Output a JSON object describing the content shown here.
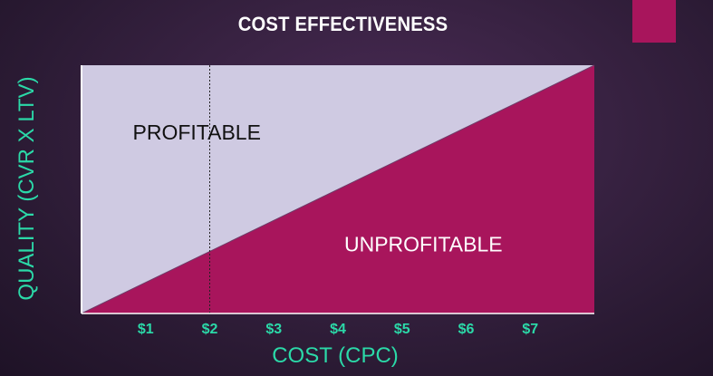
{
  "title": "COST EFFECTIVENESS",
  "colors": {
    "profitable_fill": "#cfcae2",
    "unprofitable_fill": "#a8155c",
    "axis_text": "#2bd9a8",
    "accent": "#a8155c"
  },
  "chart_data": {
    "type": "area",
    "xlabel": "COST (CPC)",
    "ylabel": "QUALITY  (CVR X LTV)",
    "xlim": [
      0,
      8
    ],
    "ylim": [
      0,
      1
    ],
    "x_ticks": [
      {
        "value": 1,
        "label": "$1"
      },
      {
        "value": 2,
        "label": "$2"
      },
      {
        "value": 3,
        "label": "$3"
      },
      {
        "value": 4,
        "label": "$4"
      },
      {
        "value": 5,
        "label": "$5"
      },
      {
        "value": 6,
        "label": "$6"
      },
      {
        "value": 7,
        "label": "$7"
      }
    ],
    "break_even_line": {
      "x": [
        0,
        8
      ],
      "y": [
        0,
        1
      ]
    },
    "reference_line_x": 2,
    "regions": [
      {
        "label": "PROFITABLE",
        "color": "#cfcae2",
        "label_color": "#111111",
        "label_x": 2,
        "label_y": 0.73
      },
      {
        "label": "UNPROFITABLE",
        "color": "#a8155c",
        "label_color": "#ffffff",
        "label_x": 5.3,
        "label_y": 0.28
      }
    ]
  }
}
